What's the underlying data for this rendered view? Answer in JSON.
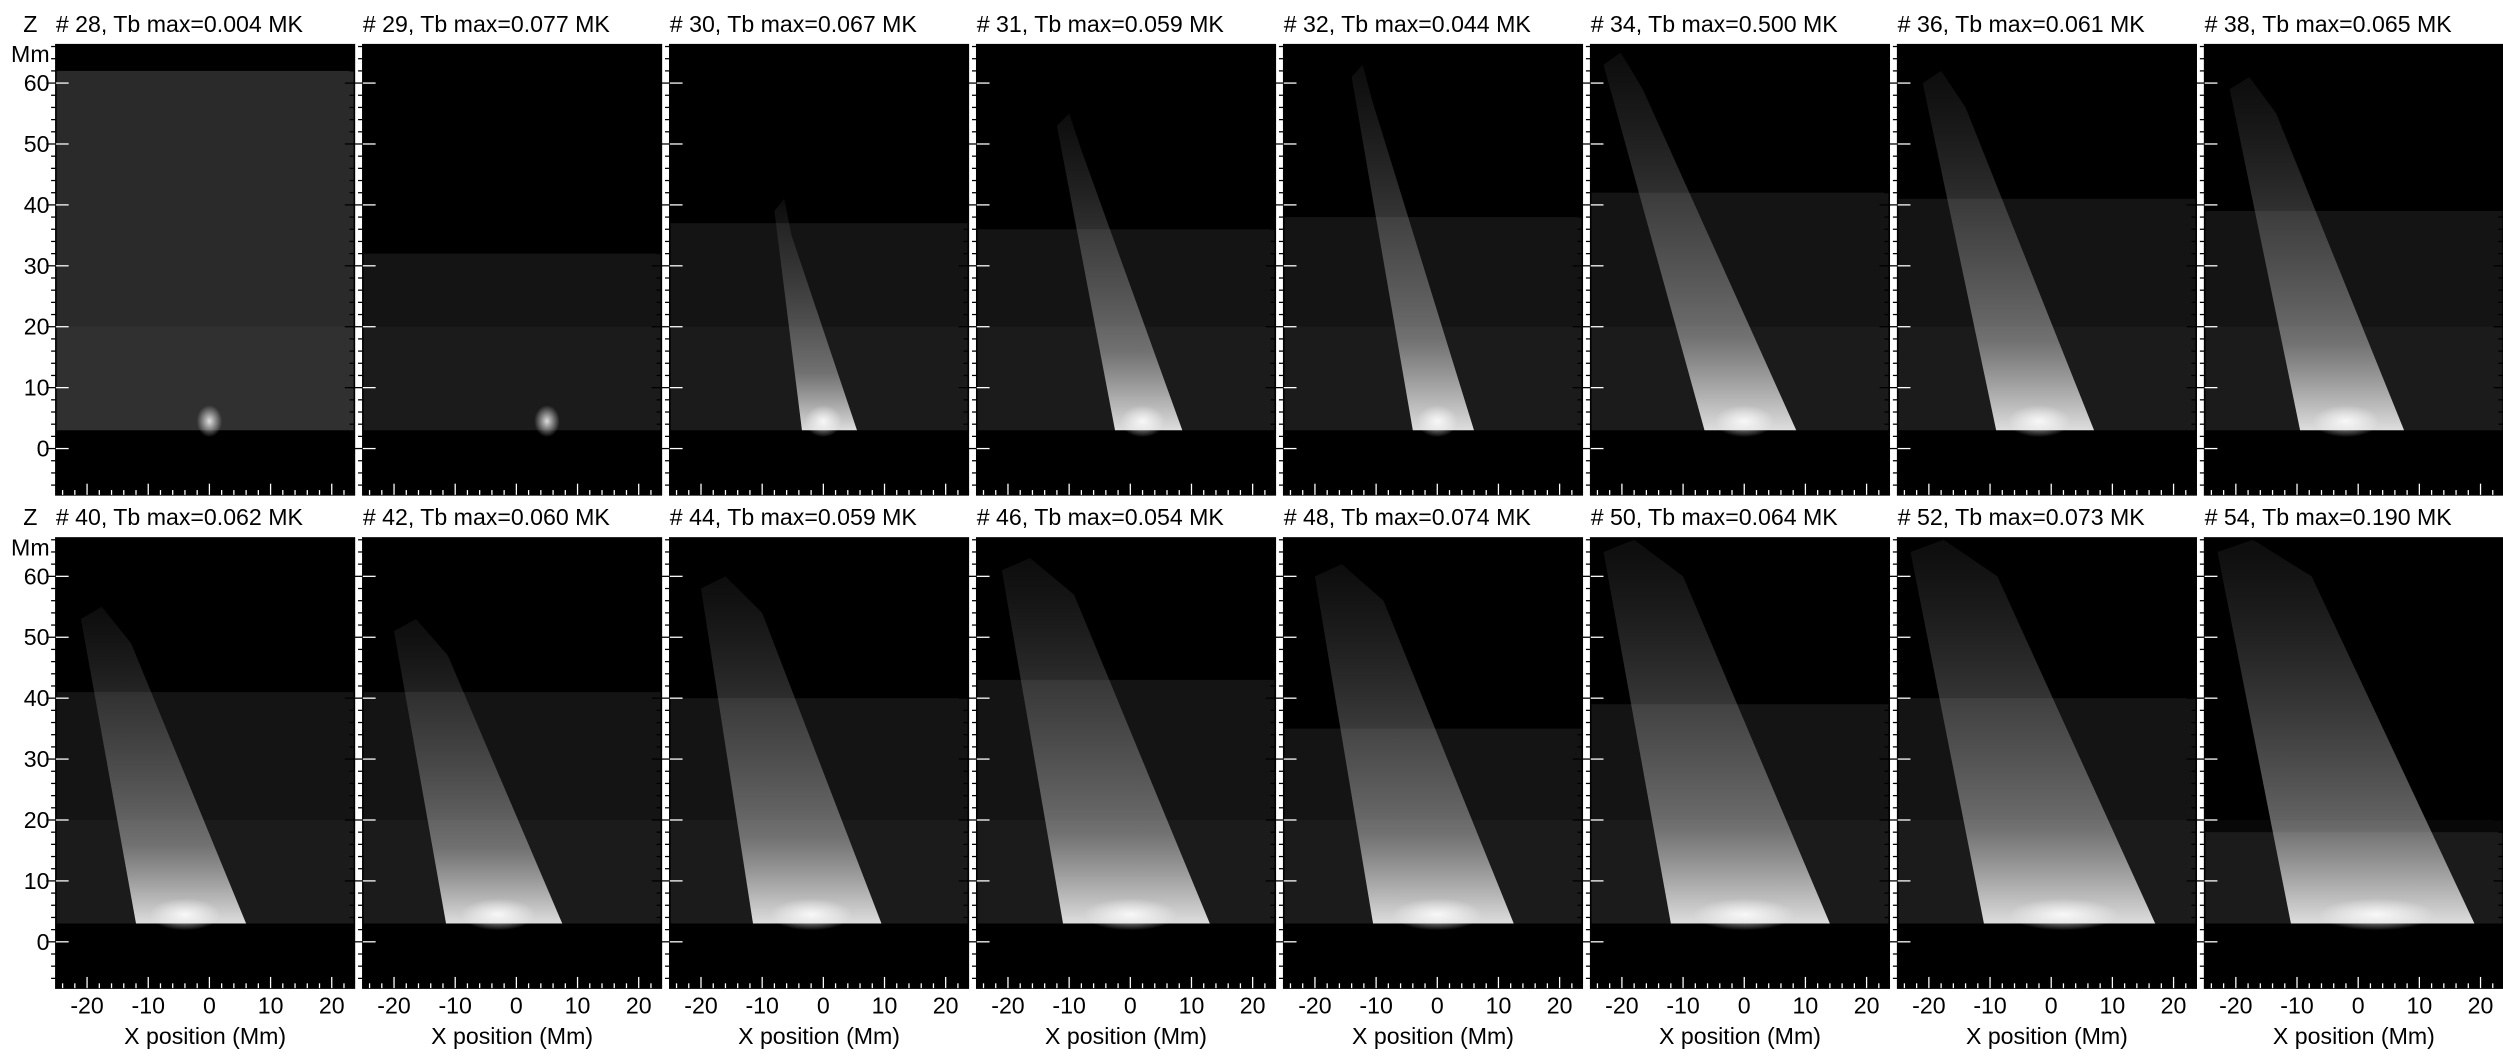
{
  "y_axis": {
    "label": "Z",
    "unit": "Mm",
    "lim": [
      -7.6,
      66.3
    ],
    "ticks": [
      0,
      10,
      20,
      30,
      40,
      50,
      60
    ]
  },
  "x_axis": {
    "label": "X position (Mm)",
    "lim": [
      -25.1,
      23.7
    ],
    "ticks": [
      -20,
      -10,
      0,
      10,
      20
    ]
  },
  "panels": [
    {
      "title": "# 28, Tb max=0.004 MK"
    },
    {
      "title": "# 29, Tb max=0.077 MK"
    },
    {
      "title": "# 30, Tb max=0.067 MK"
    },
    {
      "title": "# 31, Tb max=0.059 MK"
    },
    {
      "title": "# 32, Tb max=0.044 MK"
    },
    {
      "title": "# 34, Tb max=0.500 MK"
    },
    {
      "title": "# 36, Tb max=0.061 MK"
    },
    {
      "title": "# 38, Tb max=0.065 MK"
    },
    {
      "title": "# 40, Tb max=0.062 MK"
    },
    {
      "title": "# 42, Tb max=0.060 MK"
    },
    {
      "title": "# 44, Tb max=0.059 MK"
    },
    {
      "title": "# 46, Tb max=0.054 MK"
    },
    {
      "title": "# 48, Tb max=0.074 MK"
    },
    {
      "title": "# 50, Tb max=0.064 MK"
    },
    {
      "title": "# 52, Tb max=0.073 MK"
    },
    {
      "title": "# 54, Tb max=0.190 MK"
    }
  ]
}
